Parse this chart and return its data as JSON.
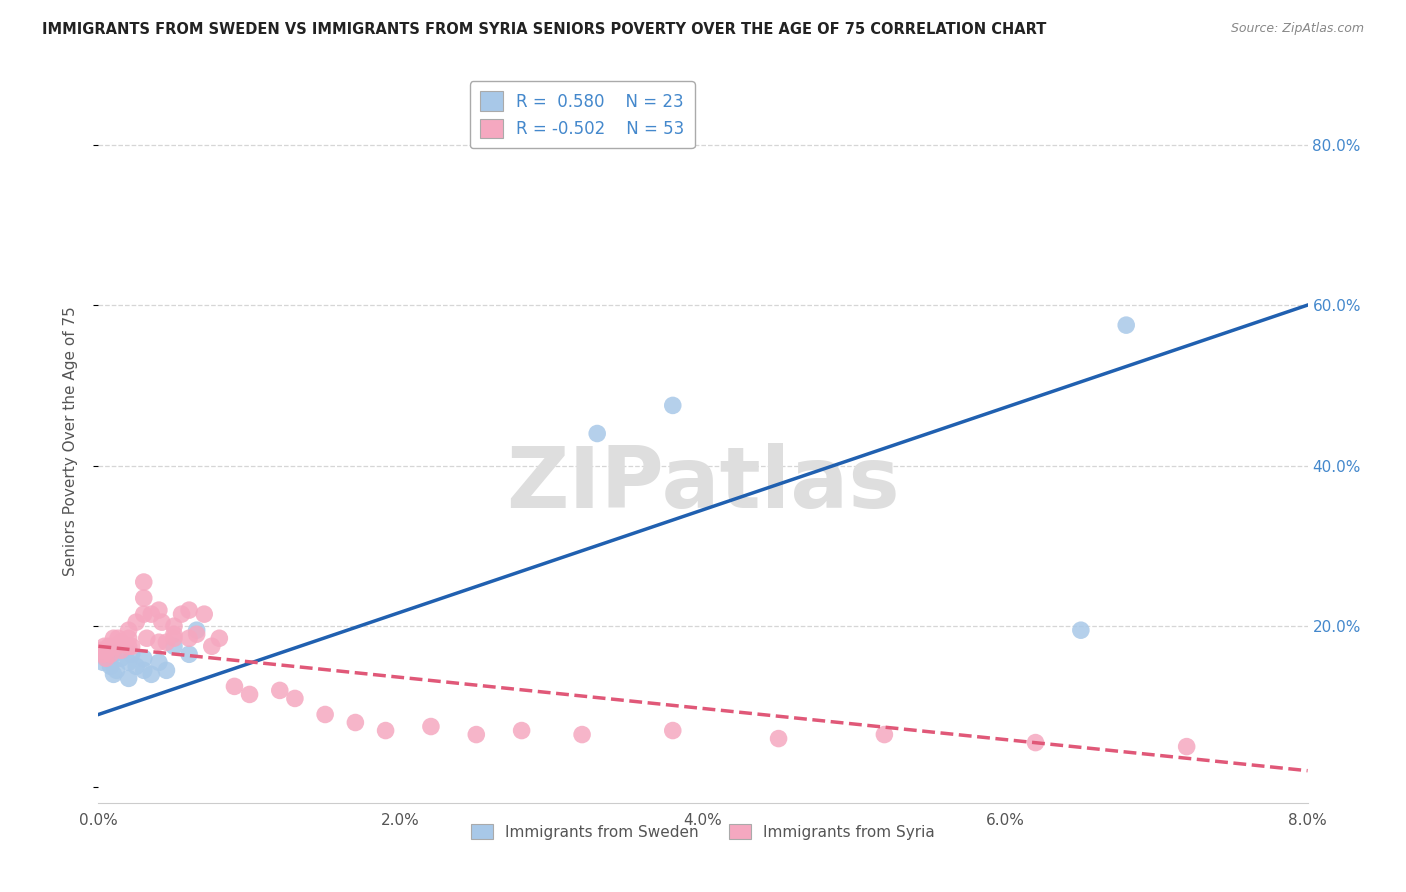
{
  "title": "IMMIGRANTS FROM SWEDEN VS IMMIGRANTS FROM SYRIA SENIORS POVERTY OVER THE AGE OF 75 CORRELATION CHART",
  "source": "Source: ZipAtlas.com",
  "ylabel": "Seniors Poverty Over the Age of 75",
  "legend_labels": [
    "Immigrants from Sweden",
    "Immigrants from Syria"
  ],
  "sweden_R": 0.58,
  "sweden_N": 23,
  "syria_R": -0.502,
  "syria_N": 53,
  "sweden_color": "#a8c8e8",
  "syria_color": "#f5a8c0",
  "sweden_line_color": "#2060b0",
  "syria_line_color": "#e05878",
  "background_color": "#ffffff",
  "grid_color": "#cccccc",
  "title_color": "#222222",
  "axis_label_color": "#555555",
  "right_tick_color": "#4488cc",
  "watermark_color": "#dedede",
  "xlim": [
    0.0,
    0.08
  ],
  "ylim": [
    -0.02,
    0.88
  ],
  "xticks": [
    0.0,
    0.02,
    0.04,
    0.06,
    0.08
  ],
  "xtick_labels": [
    "0.0%",
    "2.0%",
    "4.0%",
    "6.0%",
    "8.0%"
  ],
  "yticks": [
    0.0,
    0.2,
    0.4,
    0.6,
    0.8
  ],
  "right_ytick_labels": [
    "20.0%",
    "40.0%",
    "60.0%",
    "80.0%"
  ],
  "sweden_x": [
    0.0003,
    0.0005,
    0.0008,
    0.001,
    0.001,
    0.0012,
    0.0015,
    0.002,
    0.002,
    0.0022,
    0.0025,
    0.003,
    0.003,
    0.0035,
    0.004,
    0.0045,
    0.005,
    0.006,
    0.0065,
    0.033,
    0.038,
    0.065,
    0.068
  ],
  "sweden_y": [
    0.155,
    0.16,
    0.15,
    0.14,
    0.165,
    0.145,
    0.16,
    0.135,
    0.155,
    0.165,
    0.15,
    0.145,
    0.16,
    0.14,
    0.155,
    0.145,
    0.175,
    0.165,
    0.195,
    0.44,
    0.475,
    0.195,
    0.575
  ],
  "syria_x": [
    0.0002,
    0.0003,
    0.0004,
    0.0005,
    0.0006,
    0.0007,
    0.0008,
    0.001,
    0.001,
    0.0012,
    0.0013,
    0.0015,
    0.0015,
    0.002,
    0.002,
    0.002,
    0.0022,
    0.0025,
    0.003,
    0.003,
    0.003,
    0.0032,
    0.0035,
    0.004,
    0.004,
    0.0042,
    0.0045,
    0.005,
    0.005,
    0.005,
    0.0055,
    0.006,
    0.006,
    0.0065,
    0.007,
    0.0075,
    0.008,
    0.009,
    0.01,
    0.012,
    0.013,
    0.015,
    0.017,
    0.019,
    0.022,
    0.025,
    0.028,
    0.032,
    0.038,
    0.045,
    0.052,
    0.062,
    0.072
  ],
  "syria_y": [
    0.17,
    0.165,
    0.175,
    0.16,
    0.17,
    0.175,
    0.165,
    0.175,
    0.185,
    0.175,
    0.185,
    0.17,
    0.18,
    0.175,
    0.185,
    0.195,
    0.175,
    0.205,
    0.215,
    0.235,
    0.255,
    0.185,
    0.215,
    0.18,
    0.22,
    0.205,
    0.18,
    0.185,
    0.19,
    0.2,
    0.215,
    0.185,
    0.22,
    0.19,
    0.215,
    0.175,
    0.185,
    0.125,
    0.115,
    0.12,
    0.11,
    0.09,
    0.08,
    0.07,
    0.075,
    0.065,
    0.07,
    0.065,
    0.07,
    0.06,
    0.065,
    0.055,
    0.05
  ],
  "sweden_trendline_x0": 0.0,
  "sweden_trendline_y0": 0.09,
  "sweden_trendline_x1": 0.08,
  "sweden_trendline_y1": 0.6,
  "syria_trendline_x0": 0.0,
  "syria_trendline_y0": 0.175,
  "syria_trendline_x1": 0.08,
  "syria_trendline_y1": 0.02
}
